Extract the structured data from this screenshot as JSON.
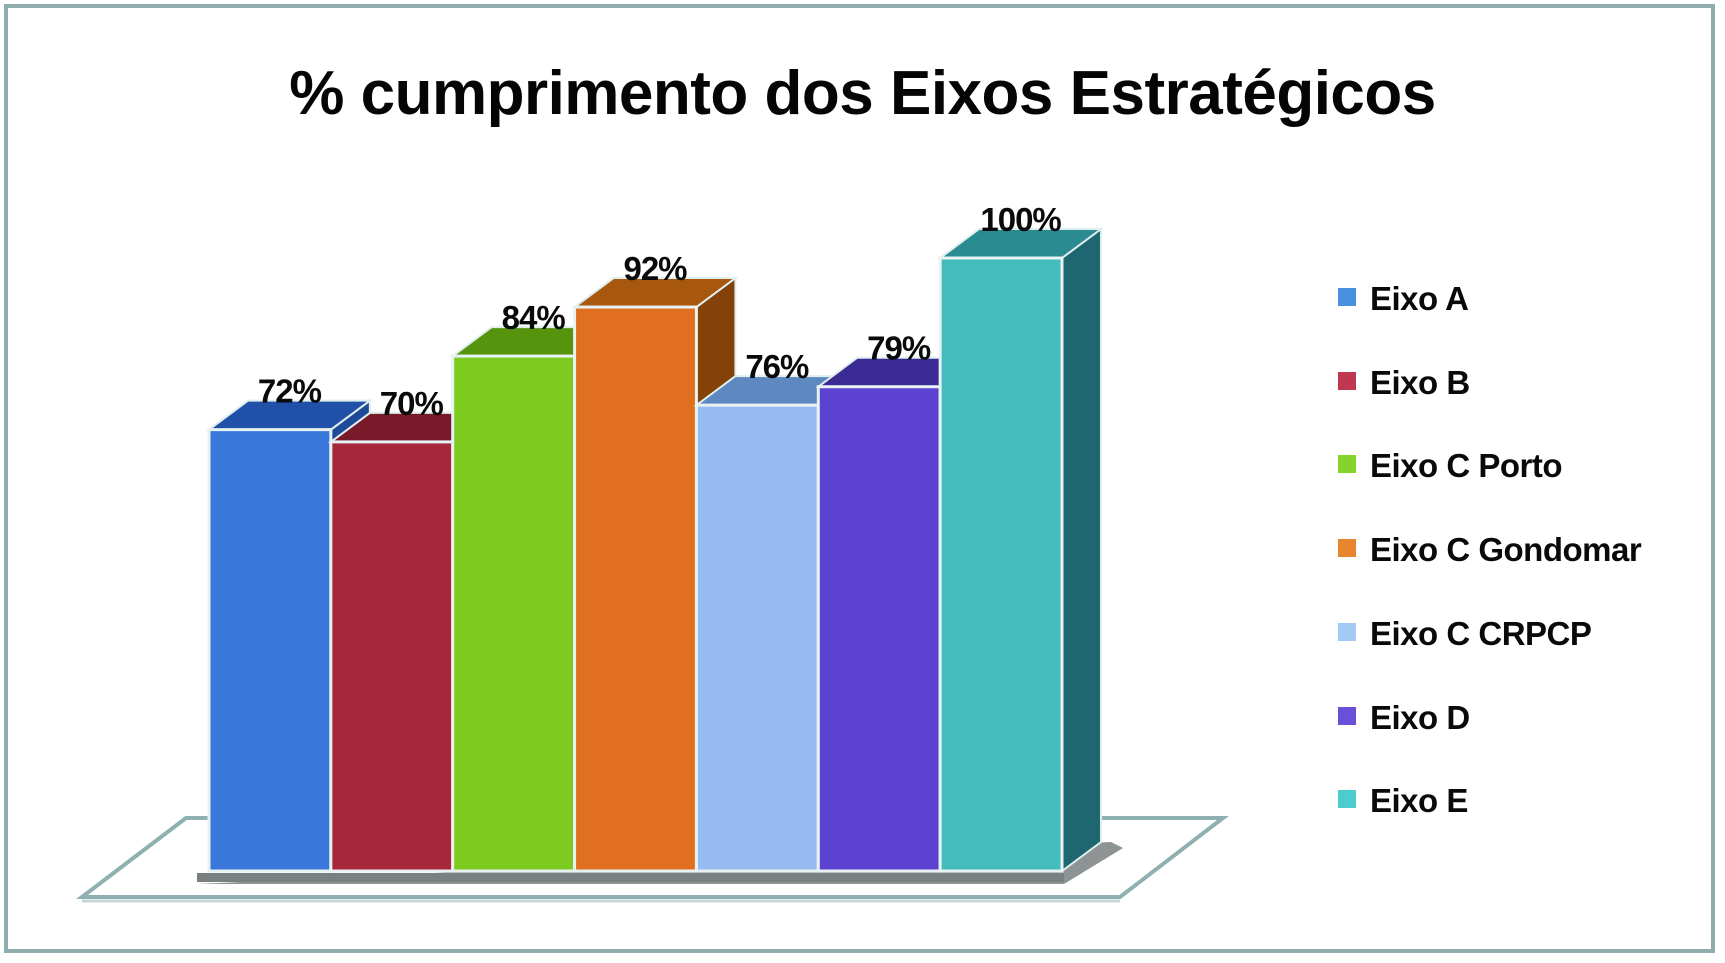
{
  "chart_data": {
    "type": "bar",
    "style": "3d-column",
    "title": "% cumprimento dos Eixos Estratégicos",
    "xlabel": "",
    "ylabel": "",
    "ylim": [
      0,
      100
    ],
    "grid": false,
    "legend_position": "right",
    "categories": [
      "Eixo A",
      "Eixo B",
      "Eixo C Porto",
      "Eixo C Gondomar",
      "Eixo C CRPCP",
      "Eixo D",
      "Eixo E"
    ],
    "values": [
      72,
      70,
      84,
      92,
      76,
      79,
      100
    ],
    "data_labels": [
      "72%",
      "70%",
      "84%",
      "92%",
      "76%",
      "79%",
      "100%"
    ],
    "series": [
      {
        "name": "Eixo A",
        "value": 72,
        "label": "72%",
        "color": "#3a78dc",
        "top": "#2050a8",
        "side": "#1e4a9a"
      },
      {
        "name": "Eixo B",
        "value": 70,
        "label": "70%",
        "color": "#a6263a",
        "top": "#781a2a",
        "side": "#6e1726"
      },
      {
        "name": "Eixo C Porto",
        "value": 84,
        "label": "84%",
        "color": "#7ccb1e",
        "top": "#56940e",
        "side": "#4e880c"
      },
      {
        "name": "Eixo C Gondomar",
        "value": 92,
        "label": "92%",
        "color": "#e07020",
        "top": "#a8580e",
        "side": "#844208"
      },
      {
        "name": "Eixo C CRPCP",
        "value": 76,
        "label": "76%",
        "color": "#96bcf2",
        "top": "#5e88c0",
        "side": "#5a80b6"
      },
      {
        "name": "Eixo D",
        "value": 79,
        "label": "79%",
        "color": "#5c42d0",
        "top": "#3c2a94",
        "side": "#36268a"
      },
      {
        "name": "Eixo E",
        "value": 100,
        "label": "100%",
        "color": "#44bcbc",
        "top": "#2a8c90",
        "side": "#1e6670"
      }
    ]
  },
  "legend": {
    "items": [
      {
        "label": "Eixo A",
        "color": "#4a90e0"
      },
      {
        "label": "Eixo B",
        "color": "#c03850"
      },
      {
        "label": "Eixo C Porto",
        "color": "#84d42c"
      },
      {
        "label": "Eixo C Gondomar",
        "color": "#e8852e"
      },
      {
        "label": "Eixo C CRPCP",
        "color": "#a2caf4"
      },
      {
        "label": "Eixo D",
        "color": "#6a50d8"
      },
      {
        "label": "Eixo E",
        "color": "#4ccccc"
      }
    ]
  },
  "colors": {
    "frame_border": "#8fadae",
    "floor_edge": "#8fb0b0",
    "shadow": "#7a8080"
  }
}
